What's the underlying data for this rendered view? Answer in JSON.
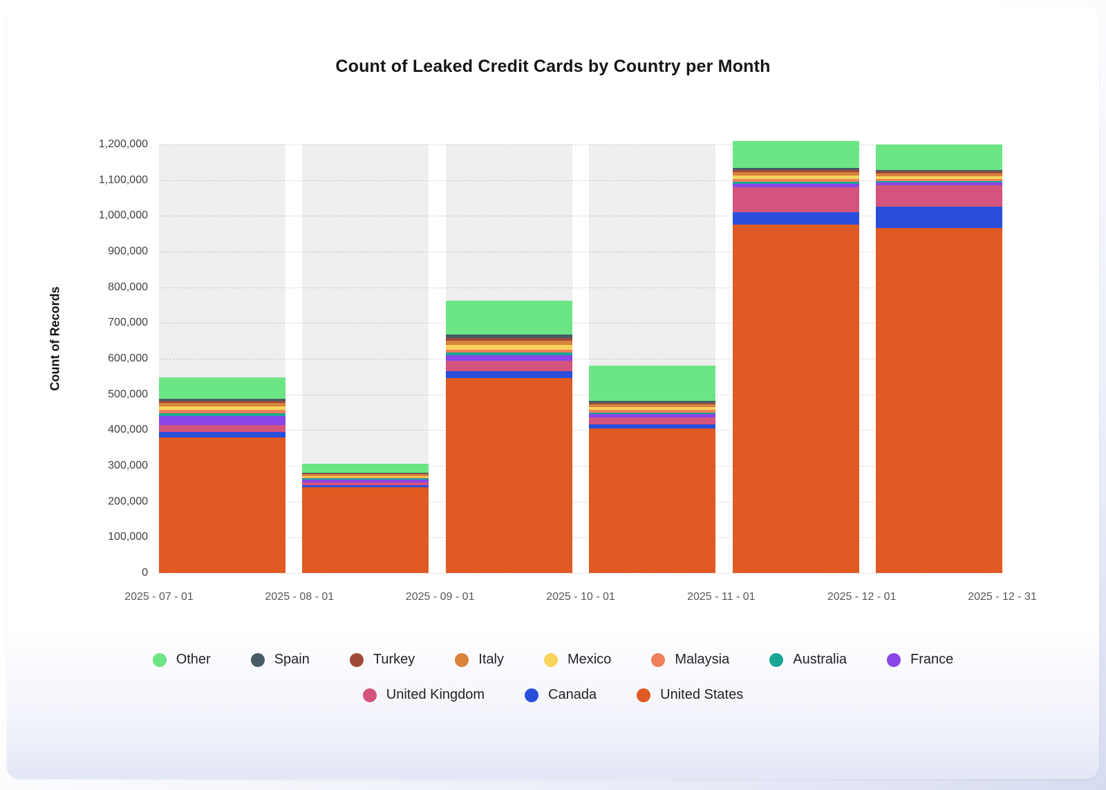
{
  "page": {
    "title": "Count of Leaked Credit Cards by Country per Month"
  },
  "chart_data": {
    "type": "bar",
    "stacked": true,
    "title": "Count of Leaked Credit Cards by Country per Month",
    "xlabel": "",
    "ylabel": "Count of Records",
    "ylim": [
      0,
      1200000
    ],
    "ytick_step": 100000,
    "ytick_labels": [
      "0",
      "100,000",
      "200,000",
      "300,000",
      "400,000",
      "500,000",
      "600,000",
      "700,000",
      "800,000",
      "900,000",
      "1,000,000",
      "1,100,000",
      "1,200,000"
    ],
    "x_edge_labels": [
      "2025 - 07 - 01",
      "2025 - 08 - 01",
      "2025 - 09 - 01",
      "2025 - 10 - 01",
      "2025 - 11 - 01",
      "2025 - 12 - 01",
      "2025 - 12 - 31"
    ],
    "categories": [
      "2025-07",
      "2025-08",
      "2025-09",
      "2025-10",
      "2025-11",
      "2025-12"
    ],
    "grid": true,
    "legend_position": "bottom",
    "track_color": "#efefef",
    "stack_order": [
      "United States",
      "Canada",
      "United Kingdom",
      "France",
      "Australia",
      "Malaysia",
      "Mexico",
      "Italy",
      "Turkey",
      "Spain",
      "Other"
    ],
    "series": [
      {
        "name": "Other",
        "color": "#6ce585",
        "values": [
          60000,
          25000,
          95000,
          98000,
          75000,
          71000
        ]
      },
      {
        "name": "Spain",
        "color": "#475b64",
        "values": [
          5000,
          2000,
          8000,
          5000,
          6000,
          5000
        ]
      },
      {
        "name": "Turkey",
        "color": "#9e4a3a",
        "values": [
          6000,
          2000,
          9000,
          5000,
          6000,
          5000
        ]
      },
      {
        "name": "Italy",
        "color": "#d9833b",
        "values": [
          10000,
          4000,
          12000,
          8000,
          10000,
          8000
        ]
      },
      {
        "name": "Mexico",
        "color": "#f8d45c",
        "values": [
          10000,
          4000,
          12000,
          8000,
          10000,
          8000
        ]
      },
      {
        "name": "Malaysia",
        "color": "#ef815a",
        "values": [
          8000,
          3000,
          8000,
          6000,
          8000,
          6000
        ]
      },
      {
        "name": "Australia",
        "color": "#18a795",
        "values": [
          8000,
          3000,
          8000,
          5000,
          5000,
          4000
        ]
      },
      {
        "name": "France",
        "color": "#8a46e8",
        "values": [
          25000,
          8000,
          15000,
          10000,
          10000,
          8000
        ]
      },
      {
        "name": "United Kingdom",
        "color": "#d4547e",
        "values": [
          20000,
          8000,
          30000,
          18000,
          70000,
          60000
        ]
      },
      {
        "name": "Canada",
        "color": "#2b4fdb",
        "values": [
          15000,
          6000,
          20000,
          12000,
          35000,
          60000
        ]
      },
      {
        "name": "United States",
        "color": "#e05a23",
        "values": [
          380000,
          240000,
          545000,
          405000,
          975000,
          965000
        ]
      }
    ],
    "legend_rows": [
      [
        "Other",
        "Spain",
        "Turkey",
        "Italy",
        "Mexico",
        "Malaysia",
        "Australia",
        "France"
      ],
      [
        "United Kingdom",
        "Canada",
        "United States"
      ]
    ]
  }
}
